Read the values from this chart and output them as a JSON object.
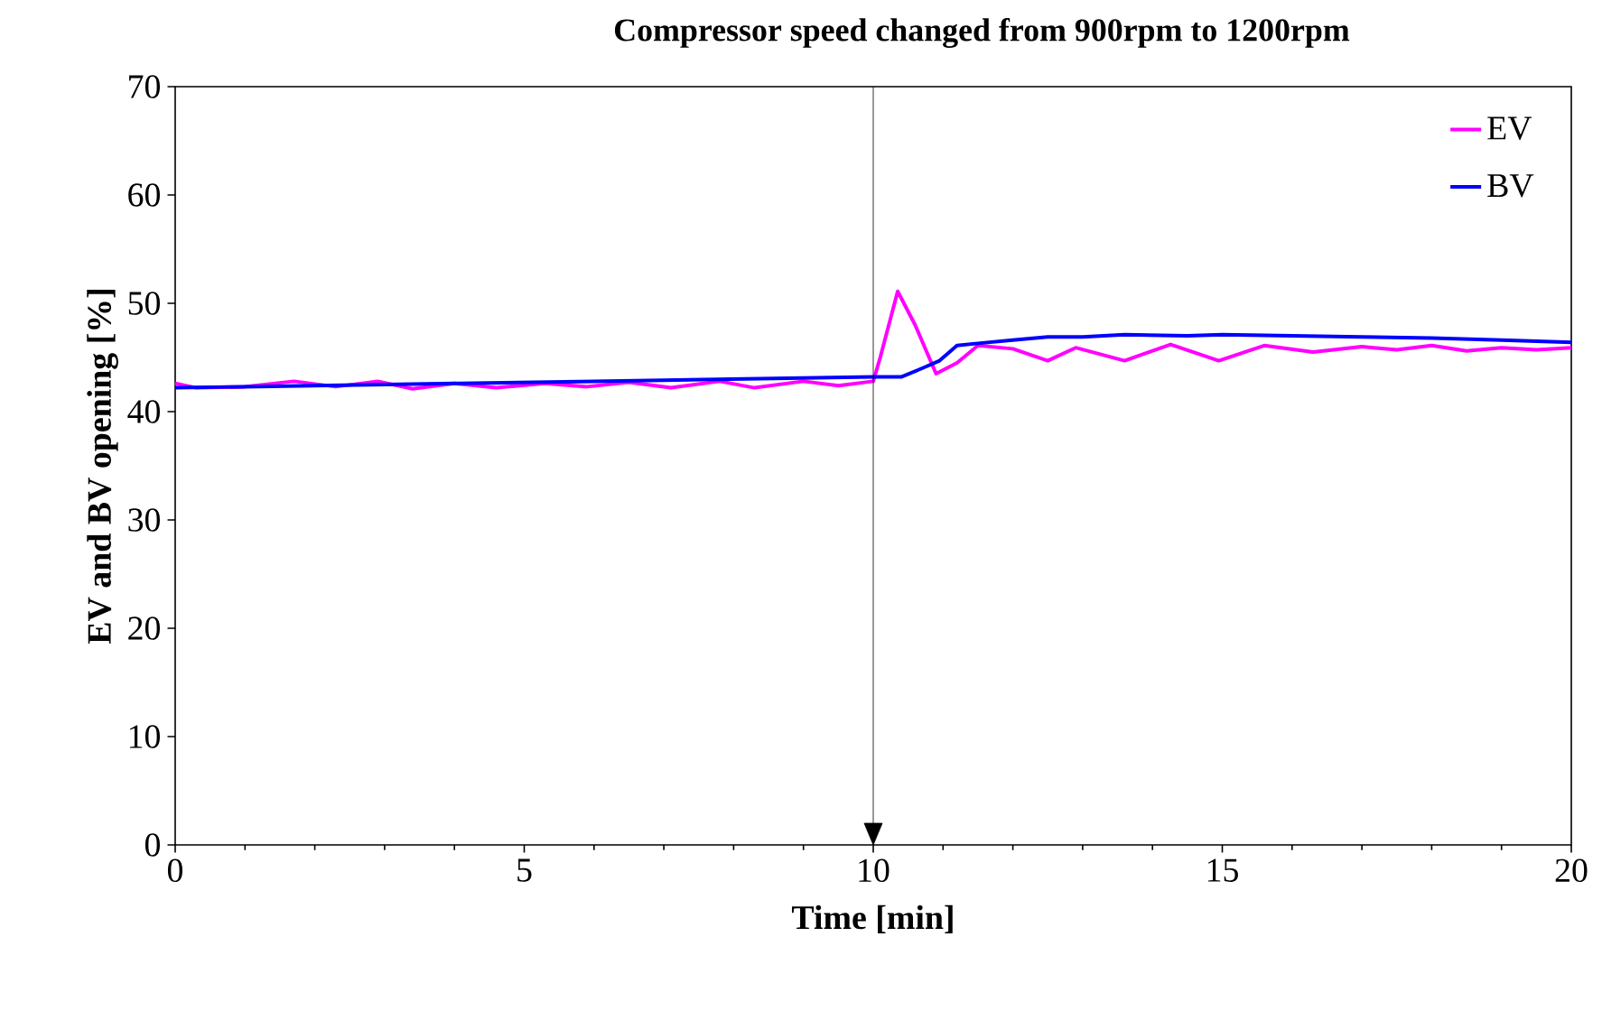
{
  "chart_data": {
    "type": "line",
    "title": "Compressor speed changed from 900rpm to 1200rpm",
    "xlabel": "Time [min]",
    "ylabel": "EV and BV opening [%]",
    "xlim": [
      0,
      20
    ],
    "ylim": [
      0,
      70
    ],
    "xticks": [
      0,
      5,
      10,
      15,
      20
    ],
    "yticks": [
      0,
      10,
      20,
      30,
      40,
      50,
      60,
      70
    ],
    "grid": false,
    "legend": "top right",
    "marker": "none",
    "line_style": "solid",
    "ref_lines": [
      {
        "axis": "x",
        "value": 10,
        "color": "#000000"
      }
    ],
    "series": [
      {
        "name": "EV",
        "color": "#ff00ff",
        "x": [
          0,
          0.3,
          1,
          1.7,
          2.3,
          2.9,
          3.4,
          4,
          4.6,
          5.3,
          5.9,
          6.5,
          7.1,
          7.8,
          8.3,
          9,
          9.5,
          10,
          10.1,
          10.35,
          10.6,
          10.9,
          11.2,
          11.5,
          12,
          12.5,
          12.9,
          13.6,
          14.26,
          14.95,
          15.6,
          16.3,
          17,
          17.5,
          18,
          18.5,
          19,
          19.5,
          20
        ],
        "values": [
          42.6,
          42.2,
          42.3,
          42.8,
          42.3,
          42.8,
          42.1,
          42.6,
          42.2,
          42.6,
          42.3,
          42.7,
          42.2,
          42.8,
          42.2,
          42.8,
          42.4,
          42.8,
          45,
          51.1,
          48,
          43.5,
          44.5,
          46.1,
          45.8,
          44.7,
          45.9,
          44.7,
          46.2,
          44.7,
          46.1,
          45.5,
          46,
          45.7,
          46.1,
          45.6,
          45.9,
          45.7,
          45.9
        ]
      },
      {
        "name": "BV",
        "color": "#0000ff",
        "x": [
          0,
          2,
          4,
          6,
          8,
          10,
          10.4,
          10.7,
          10.95,
          11.2,
          11.5,
          12,
          12.5,
          13,
          13.6,
          14.5,
          15,
          16,
          17,
          18,
          19,
          20
        ],
        "values": [
          42.2,
          42.4,
          42.6,
          42.8,
          43,
          43.2,
          43.2,
          44,
          44.7,
          46.1,
          46.3,
          46.6,
          46.9,
          46.9,
          47.1,
          47,
          47.1,
          47,
          46.9,
          46.8,
          46.6,
          46.4
        ]
      }
    ]
  }
}
